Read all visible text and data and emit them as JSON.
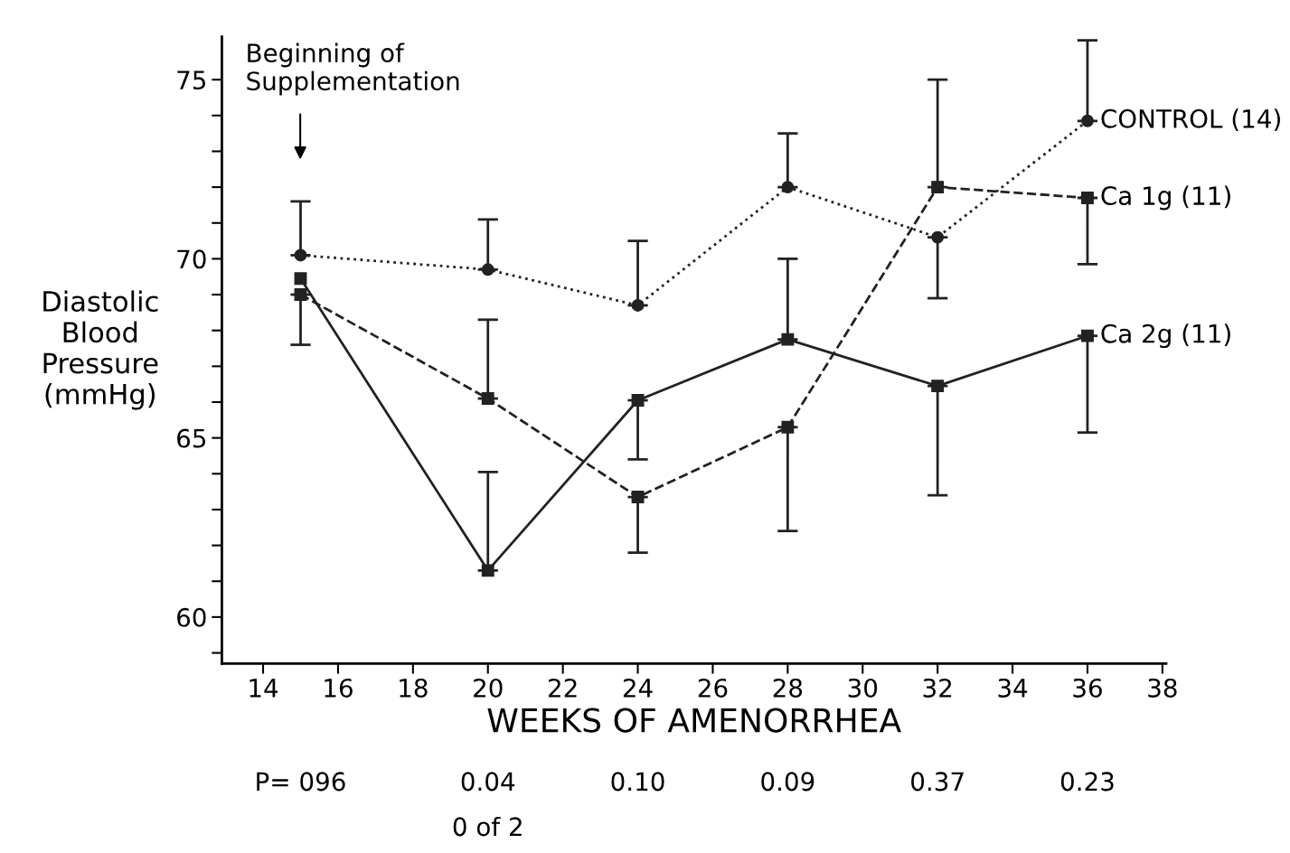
{
  "chart_data": {
    "type": "line",
    "xlabel": "WEEKS OF AMENORRHEA",
    "ylabel": "Diastolic\nBlood\nPressure\n(mmHg)",
    "xlim": [
      12.9,
      38.1
    ],
    "xticks": [
      14,
      16,
      18,
      20,
      22,
      24,
      26,
      28,
      30,
      32,
      34,
      36,
      38
    ],
    "ylim": [
      58.7,
      76.2
    ],
    "yticks": [
      {
        "value": 59,
        "label": null
      },
      {
        "value": 60,
        "label": "60"
      },
      {
        "value": 61,
        "label": null
      },
      {
        "value": 62,
        "label": null
      },
      {
        "value": 63,
        "label": null
      },
      {
        "value": 64,
        "label": null
      },
      {
        "value": 65,
        "label": "65"
      },
      {
        "value": 66,
        "label": null
      },
      {
        "value": 67,
        "label": null
      },
      {
        "value": 68,
        "label": null
      },
      {
        "value": 69,
        "label": null
      },
      {
        "value": 70,
        "label": "70"
      },
      {
        "value": 71,
        "label": null
      },
      {
        "value": 72,
        "label": null
      },
      {
        "value": 73,
        "label": null
      },
      {
        "value": 74,
        "label": null
      },
      {
        "value": 75,
        "label": "75"
      }
    ],
    "x": [
      15,
      20,
      24,
      28,
      32,
      36
    ],
    "series": [
      {
        "name": "CONTROL (14)",
        "color": "#222222",
        "marker": "circle",
        "line_style": "dotted",
        "values": [
          70.1,
          69.7,
          68.7,
          72.0,
          70.6,
          73.85
        ],
        "errors": [
          [
            70.1,
            71.6
          ],
          [
            69.7,
            71.1
          ],
          [
            68.7,
            70.5
          ],
          [
            72.0,
            73.5
          ],
          [
            68.9,
            70.6
          ],
          [
            73.85,
            76.1
          ]
        ]
      },
      {
        "name": "Ca 1g (11)",
        "color": "#222222",
        "marker": "square",
        "line_style": "dashed",
        "values": [
          69.0,
          66.1,
          63.35,
          65.3,
          72.0,
          71.7
        ],
        "errors": [
          [
            67.6,
            69.0
          ],
          [
            66.1,
            68.3
          ],
          [
            61.8,
            63.35
          ],
          [
            62.4,
            65.3
          ],
          [
            72.0,
            75.0
          ],
          [
            69.85,
            71.7
          ]
        ]
      },
      {
        "name": "Ca 2g (11)",
        "color": "#222222",
        "marker": "square",
        "line_style": "solid",
        "values": [
          69.45,
          61.3,
          66.05,
          67.75,
          66.45,
          67.85
        ],
        "errors": [
          null,
          [
            61.3,
            64.05
          ],
          [
            64.4,
            66.05
          ],
          [
            67.75,
            70.0
          ],
          [
            63.4,
            66.45
          ],
          [
            65.15,
            67.85
          ]
        ]
      }
    ],
    "annotations": [
      "Beginning of\nSupplementation",
      "P= 096",
      "0.04",
      "0.10",
      "0.09",
      "0.37",
      "0.23",
      "0 of 2"
    ],
    "grid": false,
    "legend": false
  }
}
